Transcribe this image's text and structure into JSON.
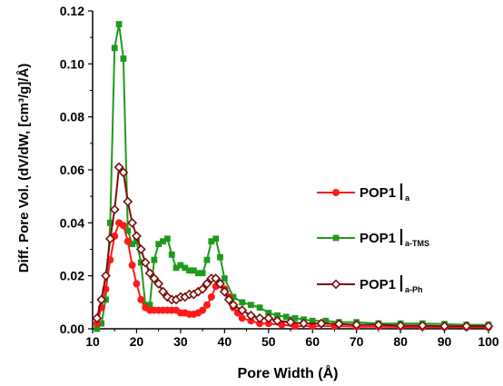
{
  "chart_data": {
    "type": "line",
    "xlabel": "Pore Width (Å)",
    "ylabel": "Diff. Pore Vol. (dV/dW, [cm³/g]/Å)",
    "xlim": [
      10,
      100
    ],
    "ylim": [
      0,
      0.12
    ],
    "x_ticks": [
      10,
      20,
      30,
      40,
      50,
      60,
      70,
      80,
      90,
      100
    ],
    "y_ticks": [
      0.0,
      0.02,
      0.04,
      0.06,
      0.08,
      0.1,
      0.12
    ],
    "grid": false,
    "legend_position": "right",
    "series": [
      {
        "name": "POP1|a",
        "label_main": "POP1",
        "label_sub": "a",
        "color": "#ff1a1a",
        "marker": "circle",
        "points": [
          [
            11,
            0.002
          ],
          [
            12,
            0.008
          ],
          [
            13,
            0.015
          ],
          [
            14,
            0.026
          ],
          [
            15,
            0.035
          ],
          [
            16,
            0.04
          ],
          [
            17,
            0.039
          ],
          [
            18,
            0.033
          ],
          [
            19,
            0.024
          ],
          [
            20,
            0.017
          ],
          [
            21,
            0.011
          ],
          [
            22,
            0.008
          ],
          [
            23,
            0.007
          ],
          [
            24,
            0.007
          ],
          [
            25,
            0.007
          ],
          [
            26,
            0.007
          ],
          [
            27,
            0.007
          ],
          [
            28,
            0.007
          ],
          [
            29,
            0.007
          ],
          [
            30,
            0.006
          ],
          [
            31,
            0.006
          ],
          [
            32,
            0.0055
          ],
          [
            33,
            0.0055
          ],
          [
            34,
            0.006
          ],
          [
            35,
            0.007
          ],
          [
            36,
            0.009
          ],
          [
            37,
            0.012
          ],
          [
            38,
            0.016
          ],
          [
            39,
            0.017
          ],
          [
            40,
            0.015
          ],
          [
            41,
            0.012
          ],
          [
            42,
            0.008
          ],
          [
            43,
            0.006
          ],
          [
            44,
            0.004
          ],
          [
            46,
            0.003
          ],
          [
            48,
            0.002
          ],
          [
            50,
            0.002
          ],
          [
            53,
            0.0015
          ],
          [
            56,
            0.001
          ],
          [
            60,
            0.001
          ],
          [
            65,
            0.001
          ],
          [
            70,
            0.0008
          ],
          [
            75,
            0.0008
          ],
          [
            80,
            0.0007
          ],
          [
            85,
            0.0006
          ],
          [
            90,
            0.0006
          ],
          [
            95,
            0.0005
          ],
          [
            100,
            0.0005
          ]
        ]
      },
      {
        "name": "POP1|a-TMS",
        "label_main": "POP1",
        "label_sub": "a-TMS",
        "color": "#1e9a1e",
        "marker": "square",
        "points": [
          [
            11,
            0.0
          ],
          [
            12,
            0.002
          ],
          [
            13,
            0.011
          ],
          [
            14,
            0.04
          ],
          [
            15,
            0.106
          ],
          [
            16,
            0.115
          ],
          [
            17,
            0.102
          ],
          [
            18,
            0.037
          ],
          [
            19,
            0.032
          ],
          [
            20,
            0.033
          ],
          [
            21,
            0.025
          ],
          [
            22,
            0.009
          ],
          [
            23,
            0.009
          ],
          [
            24,
            0.026
          ],
          [
            25,
            0.032
          ],
          [
            26,
            0.033
          ],
          [
            27,
            0.034
          ],
          [
            28,
            0.028
          ],
          [
            29,
            0.023
          ],
          [
            30,
            0.024
          ],
          [
            31,
            0.023
          ],
          [
            32,
            0.022
          ],
          [
            33,
            0.022
          ],
          [
            34,
            0.021
          ],
          [
            35,
            0.021
          ],
          [
            36,
            0.026
          ],
          [
            37,
            0.033
          ],
          [
            38,
            0.034
          ],
          [
            39,
            0.027
          ],
          [
            40,
            0.019
          ],
          [
            42,
            0.012
          ],
          [
            44,
            0.01
          ],
          [
            46,
            0.009
          ],
          [
            48,
            0.008
          ],
          [
            50,
            0.006
          ],
          [
            52,
            0.005
          ],
          [
            54,
            0.0045
          ],
          [
            56,
            0.004
          ],
          [
            58,
            0.0035
          ],
          [
            60,
            0.003
          ],
          [
            63,
            0.003
          ],
          [
            66,
            0.0025
          ],
          [
            70,
            0.0025
          ],
          [
            75,
            0.002
          ],
          [
            80,
            0.002
          ],
          [
            85,
            0.002
          ],
          [
            90,
            0.0018
          ],
          [
            95,
            0.0015
          ],
          [
            100,
            0.0015
          ]
        ]
      },
      {
        "name": "POP1|a-Ph",
        "label_main": "POP1",
        "label_sub": "a-Ph",
        "color": "#7a0e0e",
        "marker": "diamond",
        "points": [
          [
            11,
            0.004
          ],
          [
            12,
            0.011
          ],
          [
            13,
            0.02
          ],
          [
            14,
            0.034
          ],
          [
            15,
            0.045
          ],
          [
            16,
            0.061
          ],
          [
            17,
            0.059
          ],
          [
            18,
            0.048
          ],
          [
            19,
            0.04
          ],
          [
            20,
            0.035
          ],
          [
            21,
            0.03
          ],
          [
            22,
            0.025
          ],
          [
            23,
            0.021
          ],
          [
            24,
            0.019
          ],
          [
            25,
            0.017
          ],
          [
            26,
            0.014
          ],
          [
            27,
            0.012
          ],
          [
            28,
            0.011
          ],
          [
            29,
            0.011
          ],
          [
            30,
            0.012
          ],
          [
            31,
            0.012
          ],
          [
            32,
            0.013
          ],
          [
            33,
            0.013
          ],
          [
            34,
            0.014
          ],
          [
            35,
            0.015
          ],
          [
            36,
            0.017
          ],
          [
            37,
            0.019
          ],
          [
            38,
            0.019
          ],
          [
            39,
            0.017
          ],
          [
            40,
            0.014
          ],
          [
            41,
            0.011
          ],
          [
            42,
            0.009
          ],
          [
            44,
            0.007
          ],
          [
            46,
            0.005
          ],
          [
            48,
            0.004
          ],
          [
            50,
            0.004
          ],
          [
            52,
            0.003
          ],
          [
            55,
            0.0025
          ],
          [
            58,
            0.002
          ],
          [
            62,
            0.002
          ],
          [
            66,
            0.0018
          ],
          [
            70,
            0.0015
          ],
          [
            75,
            0.0015
          ],
          [
            80,
            0.0012
          ],
          [
            85,
            0.0012
          ],
          [
            90,
            0.001
          ],
          [
            95,
            0.001
          ],
          [
            100,
            0.001
          ]
        ]
      }
    ]
  }
}
